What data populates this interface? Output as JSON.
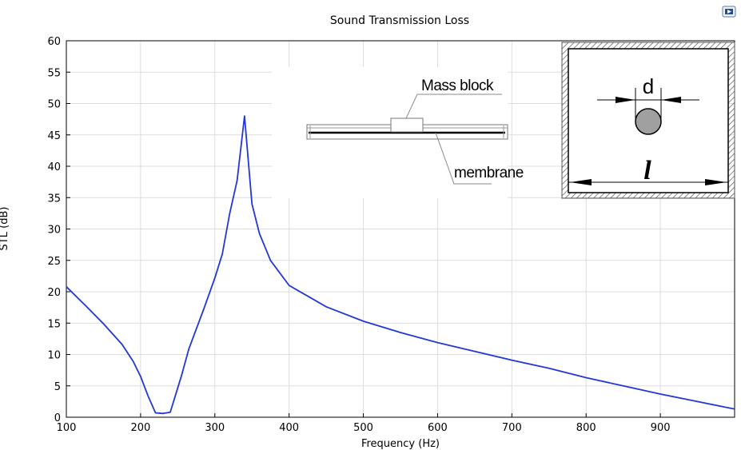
{
  "chart_data": {
    "type": "line",
    "title": "Sound Transmission Loss",
    "xlabel": "Frequency (Hz)",
    "ylabel": "STL (dB)",
    "xlim": [
      100,
      1000
    ],
    "ylim": [
      0,
      60
    ],
    "xticks": [
      100,
      200,
      300,
      400,
      500,
      600,
      700,
      800,
      900
    ],
    "yticks": [
      0,
      5,
      10,
      15,
      20,
      25,
      30,
      35,
      40,
      45,
      50,
      55,
      60
    ],
    "grid": true,
    "series": [
      {
        "color": "#2137d6",
        "x": [
          100,
          125,
          150,
          175,
          190,
          200,
          210,
          220,
          230,
          240,
          255,
          265,
          285,
          300,
          310,
          320,
          330,
          340,
          350,
          360,
          375,
          400,
          450,
          500,
          550,
          600,
          650,
          700,
          750,
          800,
          850,
          900,
          950,
          1000
        ],
        "y": [
          20.8,
          17.9,
          14.9,
          11.6,
          8.9,
          6.5,
          3.4,
          0.7,
          0.6,
          0.8,
          6.6,
          10.9,
          17.2,
          22.2,
          26.0,
          32.5,
          37.7,
          48.0,
          34.0,
          29.3,
          25.0,
          21.0,
          17.6,
          15.3,
          13.5,
          11.9,
          10.5,
          9.1,
          7.8,
          6.3,
          5.0,
          3.7,
          2.5,
          1.3
        ]
      }
    ]
  },
  "insets": {
    "mass_block_label": "Mass block",
    "membrane_label": "membrane",
    "d_label": "d",
    "l_label": "l"
  },
  "colors": {
    "line": "#2137d6",
    "grid": "#dddddd",
    "axis": "#000000",
    "ball": "#a0a0a0"
  },
  "corner_icon": "window-icon"
}
